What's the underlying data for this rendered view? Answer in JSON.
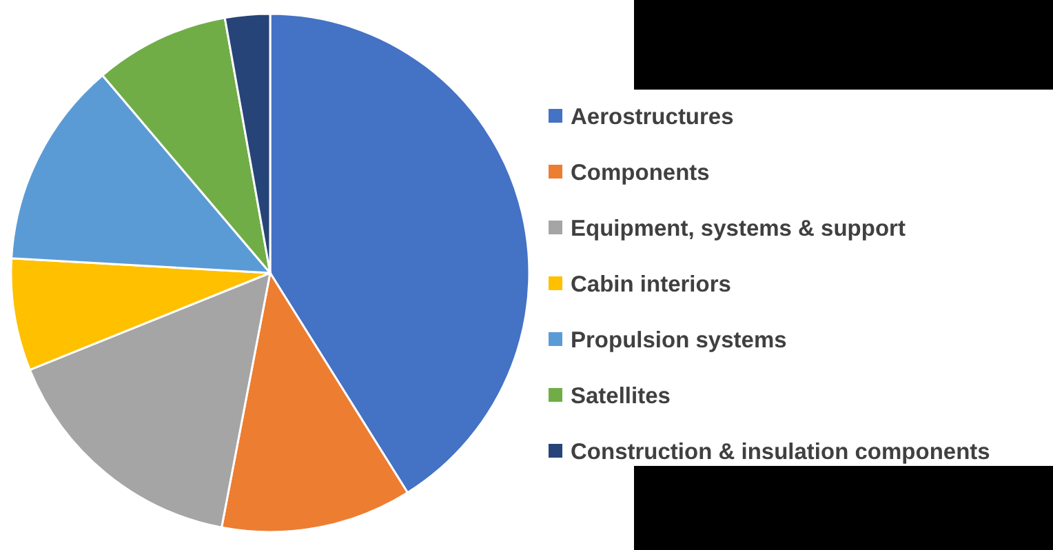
{
  "chart_data": {
    "type": "pie",
    "categories": [
      "Aerostructures",
      "Components",
      "Equipment, systems & support",
      "Cabin interiors",
      "Propulsion systems",
      "Satellites",
      "Construction & insulation components"
    ],
    "values": [
      41.1,
      11.9,
      15.9,
      7.0,
      12.9,
      8.4,
      2.8
    ],
    "colors": [
      "#4472c4",
      "#ed7d31",
      "#a5a5a5",
      "#ffc000",
      "#5b9bd5",
      "#70ad47",
      "#264478"
    ],
    "legend": "right"
  }
}
